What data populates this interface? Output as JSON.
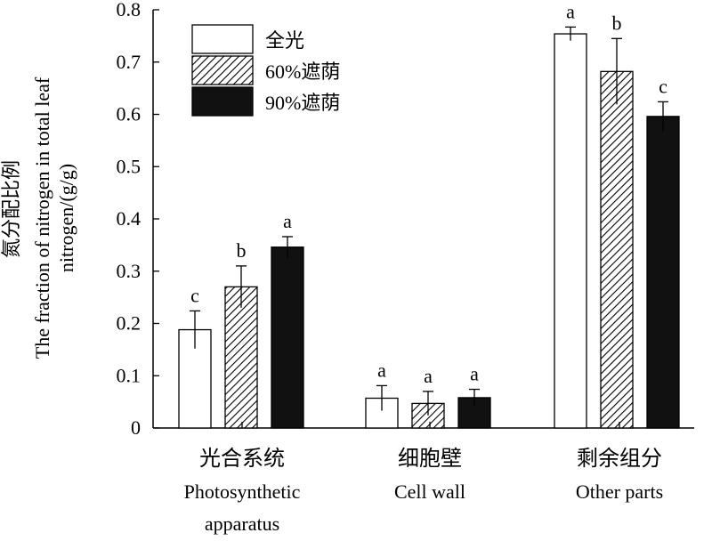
{
  "chart_data": {
    "type": "bar",
    "ylabel_cn": "氮分配比例",
    "ylabel_en_line1": "The fraction of nitrogen in total leaf",
    "ylabel_en_line2": "nitrogen/(g/g)",
    "ylim": [
      0,
      0.8
    ],
    "yticks": [
      "0",
      "0.1",
      "0.2",
      "0.3",
      "0.4",
      "0.5",
      "0.6",
      "0.7",
      "0.8"
    ],
    "categories": [
      {
        "cn": "光合系统",
        "en": [
          "Photosynthetic",
          "apparatus"
        ]
      },
      {
        "cn": "细胞壁",
        "en": [
          "Cell wall"
        ]
      },
      {
        "cn": "剩余组分",
        "en": [
          "Other parts"
        ]
      }
    ],
    "series": [
      {
        "name": "全光",
        "fill": "white",
        "values": [
          0.188,
          0.057,
          0.754
        ],
        "errors": [
          0.036,
          0.024,
          0.013
        ],
        "letters": [
          "c",
          "a",
          "a"
        ]
      },
      {
        "name": "60%遮荫",
        "fill": "hatch",
        "values": [
          0.27,
          0.047,
          0.682
        ],
        "errors": [
          0.04,
          0.023,
          0.063
        ],
        "letters": [
          "b",
          "a",
          "b"
        ]
      },
      {
        "name": "90%遮荫",
        "fill": "black",
        "values": [
          0.346,
          0.058,
          0.596
        ],
        "errors": [
          0.02,
          0.016,
          0.028
        ],
        "letters": [
          "a",
          "a",
          "c"
        ]
      }
    ],
    "legend_position": "top-left",
    "grid": false
  }
}
